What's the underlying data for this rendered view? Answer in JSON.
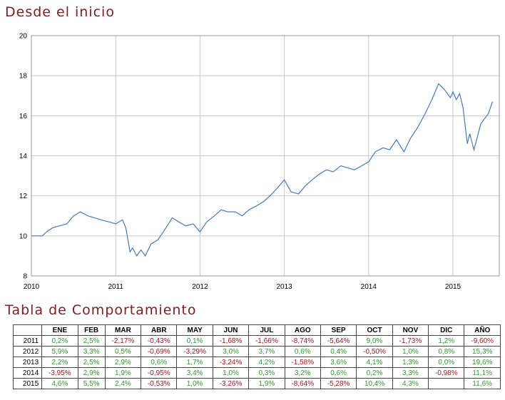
{
  "page": {
    "chart_title": "Desde el inicio",
    "table_title": "Tabla de Comportamiento"
  },
  "colors": {
    "line": "#4a7ab8",
    "title": "#7a1e23",
    "positive": "#2e9c2e",
    "negative": "#a0181e",
    "grid": "#c8c8c8"
  },
  "chart_data": {
    "type": "line",
    "title": "Desde el inicio",
    "xlabel": "",
    "ylabel": "",
    "xlim": [
      2010,
      2015.55
    ],
    "ylim": [
      8,
      20
    ],
    "x_ticks": [
      "2010",
      "2011",
      "2012",
      "2013",
      "2014",
      "2015"
    ],
    "y_ticks": [
      "8",
      "10",
      "12",
      "14",
      "16",
      "18",
      "20"
    ],
    "grid": true,
    "series": [
      {
        "x": [
          2010.0,
          2010.13,
          2010.18,
          2010.25,
          2010.33,
          2010.42,
          2010.5,
          2010.58,
          2010.67,
          2010.75,
          2010.83,
          2010.92,
          2011.0,
          2011.08,
          2011.12,
          2011.17,
          2011.2,
          2011.25,
          2011.3,
          2011.35,
          2011.42,
          2011.5,
          2011.58,
          2011.67,
          2011.75,
          2011.83,
          2011.92,
          2012.0,
          2012.08,
          2012.17,
          2012.25,
          2012.33,
          2012.42,
          2012.5,
          2012.58,
          2012.67,
          2012.75,
          2012.83,
          2012.92,
          2013.0,
          2013.08,
          2013.17,
          2013.25,
          2013.33,
          2013.42,
          2013.5,
          2013.58,
          2013.67,
          2013.75,
          2013.83,
          2013.92,
          2014.0,
          2014.08,
          2014.17,
          2014.25,
          2014.33,
          2014.42,
          2014.5,
          2014.58,
          2014.67,
          2014.75,
          2014.83,
          2014.9,
          2014.97,
          2015.0,
          2015.04,
          2015.08,
          2015.12,
          2015.17,
          2015.2,
          2015.25,
          2015.33,
          2015.42,
          2015.47
        ],
        "values": [
          10.0,
          10.0,
          10.2,
          10.4,
          10.5,
          10.6,
          11.0,
          11.2,
          11.0,
          10.9,
          10.8,
          10.7,
          10.6,
          10.8,
          10.4,
          9.2,
          9.4,
          9.0,
          9.3,
          9.0,
          9.6,
          9.8,
          10.3,
          10.9,
          10.7,
          10.5,
          10.6,
          10.2,
          10.7,
          11.0,
          11.3,
          11.2,
          11.2,
          11.0,
          11.3,
          11.5,
          11.7,
          12.0,
          12.4,
          12.8,
          12.2,
          12.1,
          12.5,
          12.8,
          13.1,
          13.3,
          13.2,
          13.5,
          13.4,
          13.3,
          13.5,
          13.7,
          14.2,
          14.4,
          14.3,
          14.8,
          14.2,
          14.9,
          15.4,
          16.1,
          16.8,
          17.6,
          17.3,
          16.9,
          17.2,
          16.8,
          17.1,
          16.4,
          14.6,
          15.1,
          14.3,
          15.6,
          16.1,
          16.7
        ]
      }
    ]
  },
  "table": {
    "headers": [
      "",
      "ENE",
      "FEB",
      "MAR",
      "ABR",
      "MAY",
      "JUN",
      "JUL",
      "AGO",
      "SEP",
      "OCT",
      "NOV",
      "DIC",
      "AÑO"
    ],
    "rows": [
      [
        "2011",
        "0,2%",
        "2,5%",
        "-2,17%",
        "-0,43%",
        "0,1%",
        "-1,68%",
        "-1,66%",
        "-8,74%",
        "-5,64%",
        "9,0%",
        "-1,73%",
        "1,2%",
        "-9,60%"
      ],
      [
        "2012",
        "5,9%",
        "3,3%",
        "0,5%",
        "-0,69%",
        "-3,29%",
        "3,0%",
        "3,7%",
        "0,6%",
        "0,4%",
        "-0,50%",
        "1,0%",
        "0,8%",
        "15,3%"
      ],
      [
        "2013",
        "2,2%",
        "2,5%",
        "2,9%",
        "0,6%",
        "1,7%",
        "-3,24%",
        "4,2%",
        "-1,58%",
        "3,6%",
        "4,1%",
        "1,3%",
        "0,0%",
        "19,6%"
      ],
      [
        "2014",
        "-3,95%",
        "2,9%",
        "1,9%",
        "-0,95%",
        "3,4%",
        "1,0%",
        "0,3%",
        "3,2%",
        "0,6%",
        "0,2%",
        "3,3%",
        "-0,98%",
        "11,1%"
      ],
      [
        "2015",
        "4,6%",
        "5,5%",
        "2,4%",
        "-0,53%",
        "1,0%",
        "-3,26%",
        "1,9%",
        "-8,64%",
        "-5,28%",
        "10,4%",
        "4,3%",
        "",
        "11,6%"
      ]
    ]
  }
}
